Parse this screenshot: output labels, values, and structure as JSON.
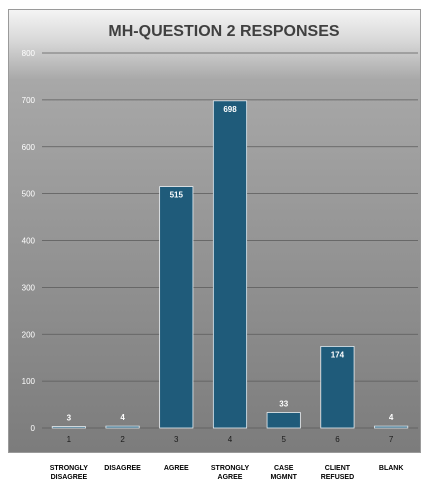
{
  "chart_data": {
    "type": "bar",
    "title": "MH-QUESTION 2 RESPONSES",
    "categories": [
      "1",
      "2",
      "3",
      "4",
      "5",
      "6",
      "7"
    ],
    "category_labels": [
      "STRONGLY\nDISAGREE",
      "DISAGREE",
      "AGREE",
      "STRONGLY\nAGREE",
      "CASE\nMGMNT",
      "CLIENT\nREFUSED",
      "BLANK"
    ],
    "values": [
      3,
      4,
      515,
      698,
      33,
      174,
      4
    ],
    "ylim": [
      0,
      800
    ],
    "yticks": [
      0,
      100,
      200,
      300,
      400,
      500,
      600,
      700,
      800
    ],
    "grid": true,
    "legend": "none",
    "colors": {
      "bar": "#1f5b7a",
      "bar_edge": "#e8eef2",
      "label": "#ffffff",
      "grid": "#5a5a5a",
      "tick": "#ffffff"
    }
  }
}
